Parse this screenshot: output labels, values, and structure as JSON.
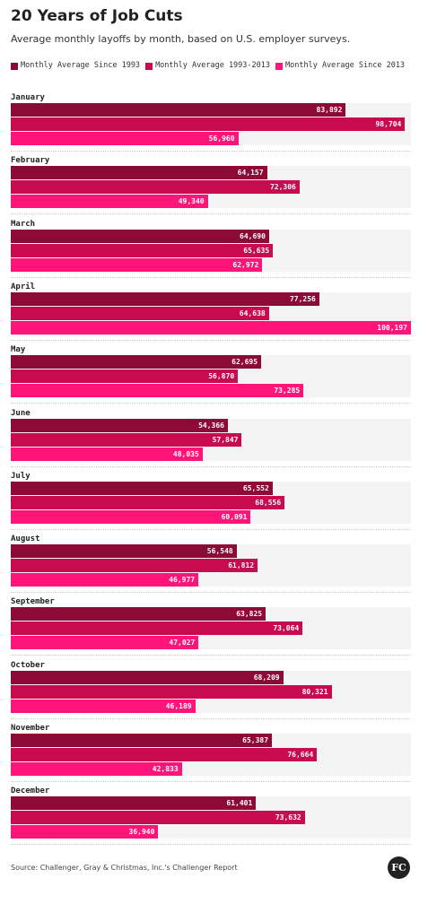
{
  "chart_data": {
    "type": "bar",
    "orientation": "horizontal",
    "title": "20 Years of Job Cuts",
    "subtitle": "Average monthly layoffs by month, based on U.S. employer surveys.",
    "categories": [
      "January",
      "February",
      "March",
      "April",
      "May",
      "June",
      "July",
      "August",
      "September",
      "October",
      "November",
      "December"
    ],
    "series": [
      {
        "name": "Monthly Average Since 1993",
        "color": "#8c0a35",
        "values": [
          83892,
          64157,
          64690,
          77256,
          62695,
          54366,
          65552,
          56548,
          63825,
          68209,
          65387,
          61401
        ],
        "value_labels": [
          "83,892",
          "64,157",
          "64,690",
          "77,256",
          "62,695",
          "54,366",
          "65,552",
          "56,548",
          "63,825",
          "68,209",
          "65,387",
          "61,401"
        ]
      },
      {
        "name": "Monthly Average 1993-2013",
        "color": "#c80a4f",
        "values": [
          98704,
          72306,
          65635,
          64638,
          56870,
          57847,
          68556,
          61812,
          73064,
          80321,
          76664,
          73632
        ],
        "value_labels": [
          "98,704",
          "72,306",
          "65,635",
          "64,638",
          "56,870",
          "57,847",
          "68,556",
          "61,812",
          "73,064",
          "80,321",
          "76,664",
          "73,632"
        ]
      },
      {
        "name": "Monthly Average Since 2013",
        "color": "#ff1479",
        "values": [
          56960,
          49340,
          62972,
          100197,
          73285,
          48035,
          60091,
          46977,
          47027,
          46189,
          42833,
          36940
        ],
        "value_labels": [
          "56,960",
          "49,340",
          "62,972",
          "100,197",
          "73,285",
          "48,035",
          "60,091",
          "46,977",
          "47,027",
          "46,189",
          "42,833",
          "36,940"
        ]
      }
    ],
    "source": "Source: Challenger, Gray & Christmas, Inc.'s Challenger Report",
    "logo": "FC"
  }
}
